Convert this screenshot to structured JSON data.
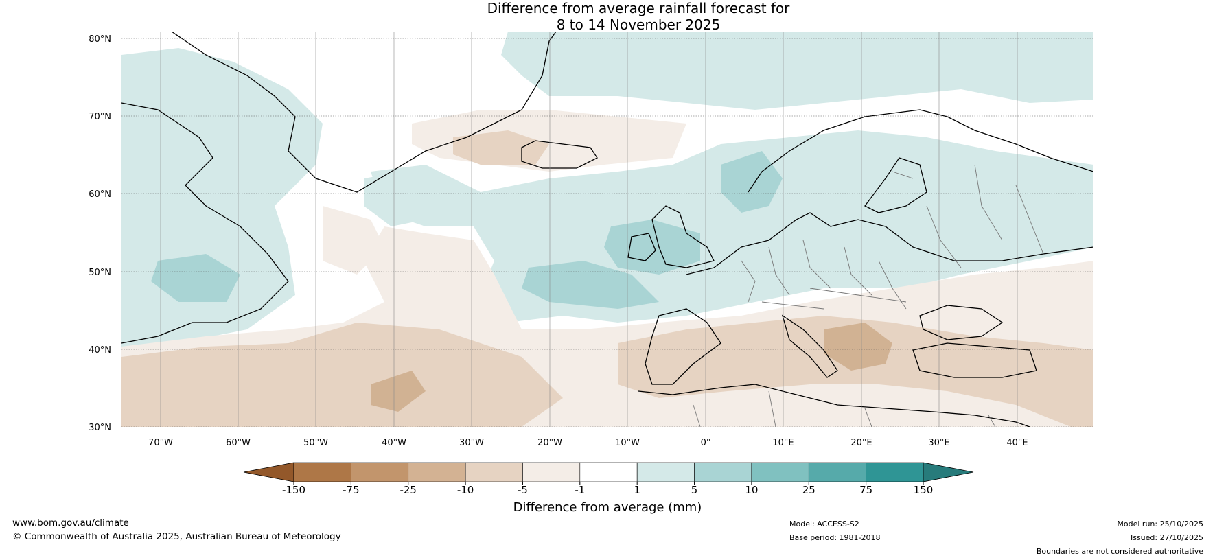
{
  "title": {
    "line1": "Difference from average rainfall forecast for",
    "line2": "8 to 14 November 2025"
  },
  "map": {
    "lat_labels": [
      "80°N",
      "70°N",
      "60°N",
      "50°N",
      "40°N",
      "30°N"
    ],
    "lon_labels": [
      "70°W",
      "60°W",
      "50°W",
      "40°W",
      "30°W",
      "20°W",
      "10°W",
      "0°",
      "10°E",
      "20°E",
      "30°E",
      "40°E"
    ],
    "colors": {
      "wet_light": "#d4e9e8",
      "wet_mid": "#a9d4d4",
      "dry_light": "#f4ede7",
      "dry_mid": "#e6d3c2",
      "dry_dark": "#d1b293",
      "coast": "#000000",
      "border": "#777777"
    }
  },
  "colorbar": {
    "label": "Difference from average (mm)",
    "ticks": [
      "-150",
      "-75",
      "-25",
      "-10",
      "-5",
      "-1",
      "1",
      "5",
      "10",
      "25",
      "75",
      "150"
    ],
    "colors": [
      "#93582a",
      "#ae7747",
      "#c2956c",
      "#d3b293",
      "#e6d3c2",
      "#f4ede7",
      "#ffffff",
      "#d4e9e8",
      "#a9d4d4",
      "#80c1c0",
      "#56aaaa",
      "#2f9595",
      "#277b7b"
    ]
  },
  "footer": {
    "url": "www.bom.gov.au/climate",
    "copyright": "© Commonwealth of Australia 2025, Australian Bureau of Meteorology",
    "model": "Model: ACCESS-S2",
    "base_period": "Base period: 1981-2018",
    "model_run": "Model run: 25/10/2025",
    "issued": "Issued: 27/10/2025",
    "disclaimer": "Boundaries are not considered authoritative"
  }
}
